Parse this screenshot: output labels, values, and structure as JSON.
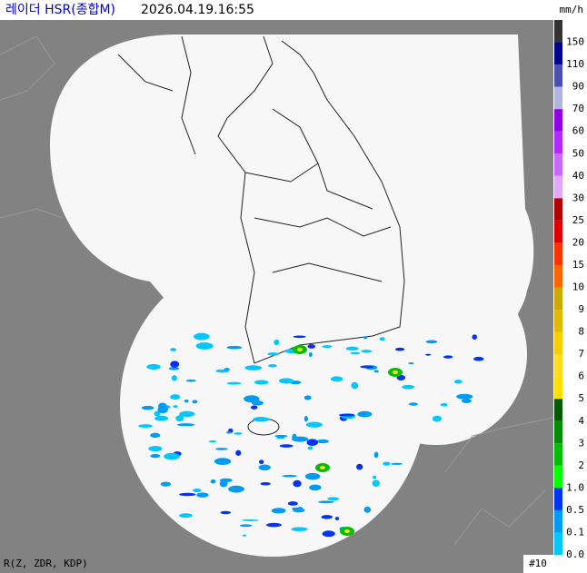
{
  "header": {
    "title": "레이더 HSR(종합M)",
    "timestamp": "2026.04.19.16:55",
    "unit": "mm/h"
  },
  "legend": [
    {
      "label": "150",
      "color": "#333333"
    },
    {
      "label": "110",
      "color": "#000390"
    },
    {
      "label": "90",
      "color": "#4c4eb1"
    },
    {
      "label": "70",
      "color": "#b3b4de"
    },
    {
      "label": "60",
      "color": "#9300e4"
    },
    {
      "label": "50",
      "color": "#b329ff"
    },
    {
      "label": "40",
      "color": "#c969ff"
    },
    {
      "label": "30",
      "color": "#e0a9ff"
    },
    {
      "label": "25",
      "color": "#b40000"
    },
    {
      "label": "20",
      "color": "#e00000"
    },
    {
      "label": "15",
      "color": "#ff3300"
    },
    {
      "label": "10",
      "color": "#ff6600"
    },
    {
      "label": "9",
      "color": "#ccaa00"
    },
    {
      "label": "8",
      "color": "#e0b900"
    },
    {
      "label": "7",
      "color": "#f9cd00"
    },
    {
      "label": "6",
      "color": "#ffdc1f"
    },
    {
      "label": "5",
      "color": "#ffe100"
    },
    {
      "label": "4",
      "color": "#005a00"
    },
    {
      "label": "3",
      "color": "#008c00"
    },
    {
      "label": "2",
      "color": "#00be00"
    },
    {
      "label": "1.0",
      "color": "#00ff00"
    },
    {
      "label": "0.5",
      "color": "#0033f5"
    },
    {
      "label": "0.1",
      "color": "#009bf5"
    },
    {
      "label": "0.0",
      "color": "#00c8ff"
    }
  ],
  "footer": {
    "variables": "R(Z, ZDR, KDP)",
    "page": "#10"
  }
}
